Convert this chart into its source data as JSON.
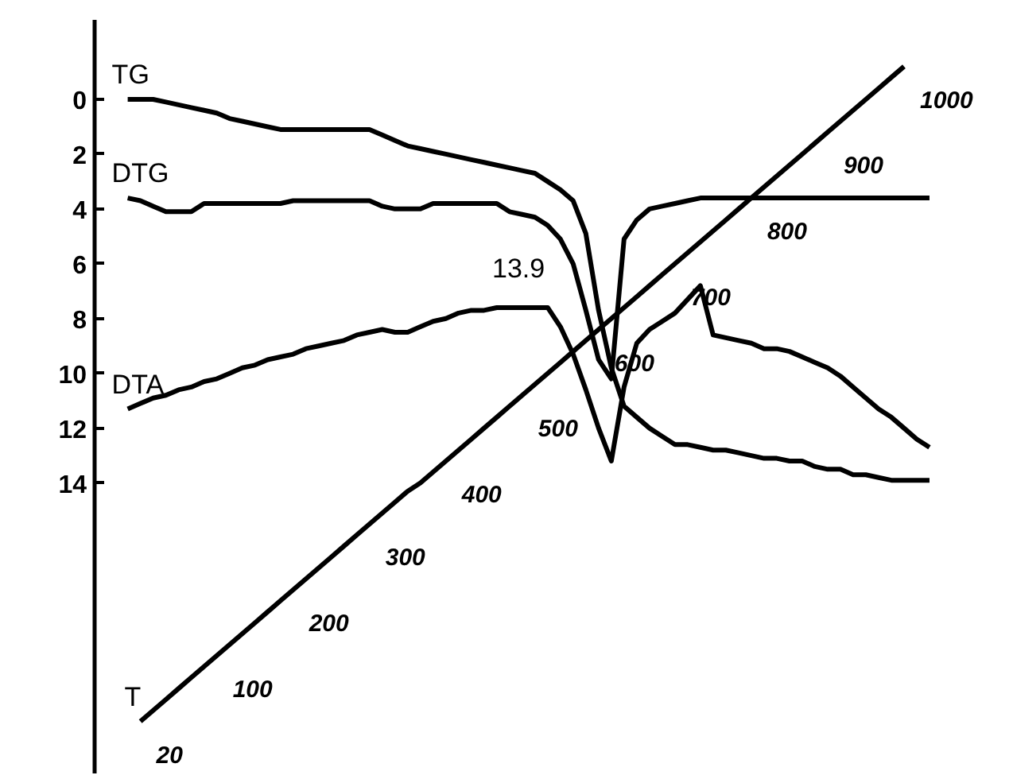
{
  "chart_data": {
    "type": "line",
    "categories": [
      null,
      null,
      null,
      null,
      null,
      null,
      null,
      null,
      null,
      null,
      null,
      null,
      null,
      null,
      null,
      null,
      null,
      null,
      null,
      null,
      null,
      null,
      null,
      null,
      null,
      null,
      null,
      null,
      null,
      null,
      null,
      null,
      null,
      null,
      null,
      null,
      null,
      null,
      null,
      null,
      null,
      null,
      null,
      null,
      null,
      null,
      null,
      null,
      null,
      null,
      null,
      null,
      null,
      null,
      null,
      null,
      null,
      null,
      null,
      null,
      null,
      null,
      null,
      null
    ],
    "ylim": [
      24.6,
      -2.9
    ],
    "yticks": [
      0,
      2,
      4,
      6,
      8,
      10,
      12,
      14
    ],
    "grid": false,
    "legend": false,
    "marker": "none",
    "line_style": "solid",
    "annotations": [
      "13.9",
      "20",
      "100",
      "200",
      "300",
      "400",
      "500",
      "600",
      "700",
      "800",
      "900",
      "1000"
    ],
    "series": [
      {
        "name": "TG",
        "color": "#000000",
        "values": [
          0.0,
          0.0,
          0.0,
          0.1,
          0.2,
          0.3,
          0.4,
          0.5,
          0.7,
          0.8,
          0.9,
          1.0,
          1.1,
          1.1,
          1.1,
          1.1,
          1.1,
          1.1,
          1.1,
          1.1,
          1.3,
          1.5,
          1.7,
          1.8,
          1.9,
          2.0,
          2.1,
          2.2,
          2.3,
          2.4,
          2.5,
          2.6,
          2.7,
          3.0,
          3.3,
          3.7,
          4.9,
          7.7,
          9.8,
          11.2,
          11.6,
          12.0,
          12.3,
          12.6,
          12.6,
          12.7,
          12.8,
          12.8,
          12.9,
          13.0,
          13.1,
          13.1,
          13.2,
          13.2,
          13.4,
          13.5,
          13.5,
          13.7,
          13.7,
          13.8,
          13.9,
          13.9,
          13.9,
          13.9
        ]
      },
      {
        "name": "DTG",
        "color": "#000000",
        "values": [
          3.6,
          3.7,
          3.9,
          4.1,
          4.1,
          4.1,
          3.8,
          3.8,
          3.8,
          3.8,
          3.8,
          3.8,
          3.8,
          3.7,
          3.7,
          3.7,
          3.7,
          3.7,
          3.7,
          3.7,
          3.9,
          4.0,
          4.0,
          4.0,
          3.8,
          3.8,
          3.8,
          3.8,
          3.8,
          3.8,
          4.1,
          4.2,
          4.3,
          4.6,
          5.1,
          6.0,
          7.7,
          9.5,
          10.2,
          5.1,
          4.4,
          4.0,
          3.9,
          3.8,
          3.7,
          3.6,
          3.6,
          3.6,
          3.6,
          3.6,
          3.6,
          3.6,
          3.6,
          3.6,
          3.6,
          3.6,
          3.6,
          3.6,
          3.6,
          3.6,
          3.6,
          3.6,
          3.6,
          3.6
        ]
      },
      {
        "name": "DTA",
        "color": "#000000",
        "values": [
          11.3,
          11.1,
          10.9,
          10.8,
          10.6,
          10.5,
          10.3,
          10.2,
          10.0,
          9.8,
          9.7,
          9.5,
          9.4,
          9.3,
          9.1,
          9.0,
          8.9,
          8.8,
          8.6,
          8.5,
          8.4,
          8.5,
          8.5,
          8.3,
          8.1,
          8.0,
          7.8,
          7.7,
          7.7,
          7.6,
          7.6,
          7.6,
          7.6,
          7.6,
          8.3,
          9.3,
          10.6,
          12.0,
          13.2,
          10.5,
          8.9,
          8.4,
          8.1,
          7.8,
          7.3,
          6.8,
          8.6,
          8.7,
          8.8,
          8.9,
          9.1,
          9.1,
          9.2,
          9.4,
          9.6,
          9.8,
          10.1,
          10.5,
          10.9,
          11.3,
          11.6,
          12.0,
          12.4,
          12.7
        ]
      },
      {
        "name": "T",
        "color": "#000000",
        "values": [
          null,
          22.7,
          22.3,
          21.9,
          21.5,
          21.1,
          20.7,
          20.3,
          19.9,
          19.5,
          19.1,
          18.7,
          18.3,
          17.9,
          17.5,
          17.1,
          16.7,
          16.3,
          15.9,
          15.5,
          15.1,
          14.7,
          14.3,
          14.0,
          13.6,
          13.2,
          12.8,
          12.4,
          12.0,
          11.6,
          11.2,
          10.8,
          10.4,
          10.0,
          9.6,
          9.2,
          8.8,
          8.4,
          8.0,
          7.6,
          7.2,
          6.8,
          6.4,
          6.0,
          5.6,
          5.2,
          4.8,
          4.4,
          4.0,
          3.6,
          3.2,
          2.8,
          2.4,
          2.0,
          1.6,
          1.2,
          0.8,
          0.4,
          0.0,
          -0.4,
          -0.8,
          -1.2,
          null,
          null
        ]
      }
    ]
  }
}
